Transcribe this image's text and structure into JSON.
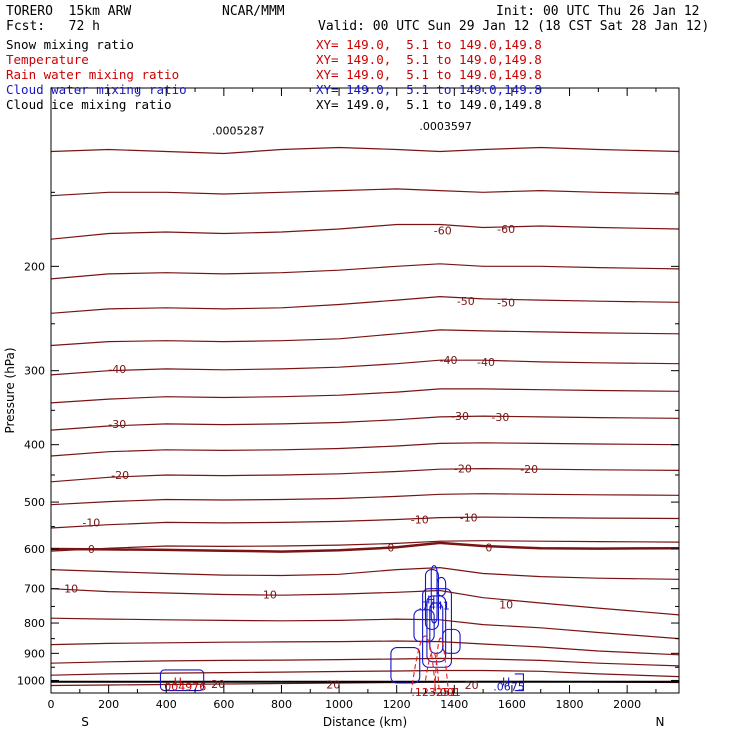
{
  "header": {
    "model": "TORERO  15km ARW",
    "forecast": "Fcst:   72 h",
    "center": "NCAR/MMM",
    "init": "Init: 00 UTC Thu 26 Jan 12",
    "valid": "Valid: 00 UTC Sun 29 Jan 12 (18 CST Sat 28 Jan 12)"
  },
  "fields": [
    {
      "name": "Snow mixing ratio",
      "xy": "XY= 149.0,  5.1 to 149.0,149.8",
      "name_color": "#000000",
      "xy_color": "#cc0000"
    },
    {
      "name": "Temperature",
      "xy": "XY= 149.0,  5.1 to 149.0,149.8",
      "name_color": "#cc0000",
      "xy_color": "#cc0000"
    },
    {
      "name": "Rain water mixing ratio",
      "xy": "XY= 149.0,  5.1 to 149.0,149.8",
      "name_color": "#cc0000",
      "xy_color": "#cc0000"
    },
    {
      "name": "Cloud water mixing ratio",
      "xy": "XY= 149.0,  5.1 to 149.0,149.8",
      "name_color": "#1515c8",
      "xy_color": "#1515c8"
    },
    {
      "name": "Cloud ice mixing ratio",
      "xy": "XY= 149.0,  5.1 to 149.0,149.8",
      "name_color": "#000000",
      "xy_color": "#000000"
    }
  ],
  "colors": {
    "temperature": "#7a1414",
    "snow": "#000000",
    "rain": "#e02020",
    "cloud_water": "#1515c8",
    "cloud_ice": "#000000"
  },
  "chart_data": {
    "type": "line",
    "xlabel": "Distance (km)",
    "ylabel": "Pressure (hPa)",
    "xlim": [
      0,
      2180
    ],
    "ylim": [
      1050,
      100
    ],
    "y_scale": "log",
    "x_ticks": [
      0,
      200,
      400,
      600,
      800,
      1000,
      1200,
      1400,
      1600,
      1800,
      2000
    ],
    "y_ticks": [
      200,
      300,
      400,
      500,
      600,
      700,
      800,
      900,
      1000
    ],
    "y_tick_labels": [
      "200",
      "300",
      "400",
      "500",
      "600",
      "700",
      "800",
      "900",
      "1000"
    ],
    "left_end_label": "S",
    "right_end_label": "N",
    "temperature_isotherms": [
      {
        "value": -70,
        "p": [
          128,
          127,
          128,
          129,
          127,
          126,
          127,
          128,
          127,
          126,
          127,
          128
        ]
      },
      {
        "value": -65,
        "p": [
          152,
          150,
          150,
          151,
          150,
          149,
          148,
          149,
          150,
          149,
          150,
          151
        ]
      },
      {
        "value": -60,
        "p": [
          180,
          176,
          175,
          176,
          175,
          173,
          170,
          170,
          172,
          171,
          172,
          173
        ]
      },
      {
        "value": -55,
        "p": [
          210,
          206,
          205,
          206,
          205,
          203,
          200,
          198,
          200,
          200,
          201,
          202
        ]
      },
      {
        "value": -50,
        "p": [
          240,
          236,
          235,
          236,
          235,
          232,
          228,
          225,
          227,
          228,
          229,
          230
        ]
      },
      {
        "value": -45,
        "p": [
          272,
          268,
          267,
          268,
          267,
          265,
          260,
          256,
          257,
          258,
          259,
          260
        ]
      },
      {
        "value": -40,
        "p": [
          305,
          300,
          298,
          299,
          298,
          296,
          292,
          288,
          288,
          290,
          291,
          292
        ]
      },
      {
        "value": -35,
        "p": [
          340,
          335,
          332,
          333,
          332,
          330,
          326,
          322,
          322,
          323,
          324,
          325
        ]
      },
      {
        "value": -30,
        "p": [
          378,
          372,
          369,
          370,
          369,
          367,
          363,
          359,
          358,
          359,
          360,
          361
        ]
      },
      {
        "value": -25,
        "p": [
          418,
          411,
          408,
          409,
          408,
          406,
          402,
          398,
          397,
          398,
          399,
          400
        ]
      },
      {
        "value": -20,
        "p": [
          462,
          454,
          450,
          451,
          450,
          448,
          444,
          440,
          439,
          440,
          441,
          442
        ]
      },
      {
        "value": -15,
        "p": [
          505,
          499,
          495,
          496,
          495,
          493,
          489,
          485,
          484,
          485,
          486,
          487
        ]
      },
      {
        "value": -10,
        "p": [
          553,
          546,
          541,
          542,
          541,
          539,
          535,
          531,
          530,
          531,
          532,
          533
        ]
      },
      {
        "value": -5,
        "p": [
          605,
          598,
          593,
          594,
          593,
          591,
          587,
          582,
          581,
          582,
          583,
          584
        ]
      },
      {
        "value": 0,
        "p": [
          600,
          601,
          602,
          604,
          606,
          603,
          596,
          586,
          593,
          598,
          599,
          598
        ]
      },
      {
        "value": 5,
        "p": [
          650,
          655,
          660,
          664,
          665,
          662,
          650,
          645,
          660,
          668,
          672,
          675
        ]
      },
      {
        "value": 10,
        "p": [
          700,
          708,
          712,
          716,
          718,
          715,
          710,
          705,
          725,
          740,
          755,
          775
        ]
      },
      {
        "value": 15,
        "p": [
          785,
          788,
          790,
          792,
          793,
          792,
          788,
          790,
          805,
          815,
          830,
          850
        ]
      },
      {
        "value": 20,
        "p": [
          870,
          866,
          864,
          862,
          861,
          860,
          858,
          860,
          868,
          878,
          892,
          905
        ]
      },
      {
        "value": 25,
        "p": [
          935,
          930,
          927,
          925,
          924,
          922,
          920,
          918,
          920,
          925,
          935,
          945
        ]
      },
      {
        "value": 30,
        "p": [
          980,
          975,
          972,
          970,
          968,
          966,
          964,
          962,
          962,
          965,
          975,
          985
        ]
      },
      {
        "value": 35,
        "p": [
          1020,
          1018,
          1016,
          1014,
          1012,
          1010,
          1008,
          1006,
          1004,
          1004,
          1006,
          1008
        ]
      }
    ],
    "temperature_isotherm_x": [
      0,
      200,
      400,
      600,
      800,
      1000,
      1200,
      1350,
      1500,
      1700,
      1900,
      2180
    ],
    "contour_labels": [
      {
        "text": "-60",
        "x": 1360,
        "p": 174,
        "color": "#7a1414"
      },
      {
        "text": "-60",
        "x": 1580,
        "p": 173,
        "color": "#7a1414"
      },
      {
        "text": "-50",
        "x": 1440,
        "p": 229,
        "color": "#7a1414"
      },
      {
        "text": "-50",
        "x": 1580,
        "p": 230,
        "color": "#7a1414"
      },
      {
        "text": "-40",
        "x": 230,
        "p": 298,
        "color": "#7a1414"
      },
      {
        "text": "-40",
        "x": 1380,
        "p": 288,
        "color": "#7a1414"
      },
      {
        "text": "-40",
        "x": 1510,
        "p": 290,
        "color": "#7a1414"
      },
      {
        "text": "-30",
        "x": 230,
        "p": 369,
        "color": "#7a1414"
      },
      {
        "text": "-30",
        "x": 1420,
        "p": 358,
        "color": "#7a1414"
      },
      {
        "text": "-30",
        "x": 1560,
        "p": 359,
        "color": "#7a1414"
      },
      {
        "text": "-20",
        "x": 240,
        "p": 450,
        "color": "#7a1414"
      },
      {
        "text": "-20",
        "x": 1430,
        "p": 439,
        "color": "#7a1414"
      },
      {
        "text": "-20",
        "x": 1660,
        "p": 440,
        "color": "#7a1414"
      },
      {
        "text": "-10",
        "x": 140,
        "p": 541,
        "color": "#7a1414"
      },
      {
        "text": "-10",
        "x": 1280,
        "p": 535,
        "color": "#7a1414"
      },
      {
        "text": "-10",
        "x": 1450,
        "p": 531,
        "color": "#7a1414"
      },
      {
        "text": "0",
        "x": 140,
        "p": 600,
        "color": "#7a1414"
      },
      {
        "text": "0",
        "x": 1180,
        "p": 596,
        "color": "#7a1414"
      },
      {
        "text": "0",
        "x": 1520,
        "p": 596,
        "color": "#7a1414"
      },
      {
        "text": "10",
        "x": 70,
        "p": 700,
        "color": "#7a1414"
      },
      {
        "text": "10",
        "x": 760,
        "p": 716,
        "color": "#7a1414"
      },
      {
        "text": "10",
        "x": 1580,
        "p": 745,
        "color": "#7a1414"
      },
      {
        "text": "20",
        "x": 580,
        "p": 1013,
        "color": "#7a1414"
      },
      {
        "text": "20",
        "x": 980,
        "p": 1016,
        "color": "#7a1414"
      },
      {
        "text": "20",
        "x": 1460,
        "p": 1017,
        "color": "#7a1414"
      }
    ],
    "ground_pressure": 1005,
    "max_labels": [
      {
        "text": "H",
        "x": 1320,
        "p": 730,
        "color": "#1515c8"
      },
      {
        "text": ".7441",
        "x": 1330,
        "p": 748,
        "color": "#1515c8"
      },
      {
        "text": "H",
        "x": 440,
        "p": 1005,
        "color": "#cc0000"
      },
      {
        "text": ".004976",
        "x": 460,
        "p": 1024,
        "color": "#cc0000"
      },
      {
        "text": "H",
        "x": 1580,
        "p": 1005,
        "color": "#1515c8"
      },
      {
        "text": ".0675",
        "x": 1590,
        "p": 1024,
        "color": "#1515c8"
      },
      {
        "text": ".123251",
        "x": 1330,
        "p": 1048,
        "color": "#cc0000"
      },
      {
        "text": ".001",
        "x": 1380,
        "p": 1050,
        "color": "#cc0000"
      },
      {
        "text": ".0005287",
        "x": 650,
        "p": 118,
        "color": "#000000"
      },
      {
        "text": ".0003597",
        "x": 1370,
        "p": 116,
        "color": "#000000"
      }
    ]
  }
}
